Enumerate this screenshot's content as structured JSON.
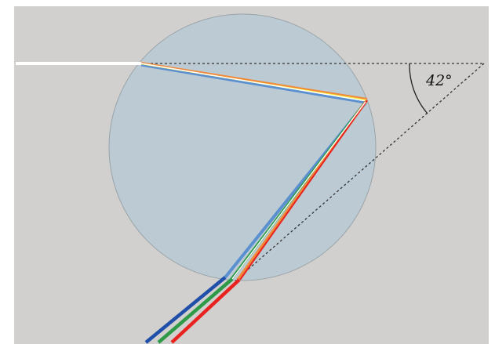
{
  "diagram": {
    "angle_label": "42°",
    "colors": {
      "background": "#d1d0cf",
      "droplet_fill": "#bccbd3",
      "droplet_stroke": "#9aa3a8",
      "incoming_ray": "#ffffff",
      "dashed_line": "#333333",
      "red": "#e8231f",
      "orange": "#f08a3a",
      "yellow": "#f6ea3a",
      "green": "#2e9a48",
      "blue": "#1f4fa8",
      "light_blue": "#5a8fd0"
    }
  }
}
